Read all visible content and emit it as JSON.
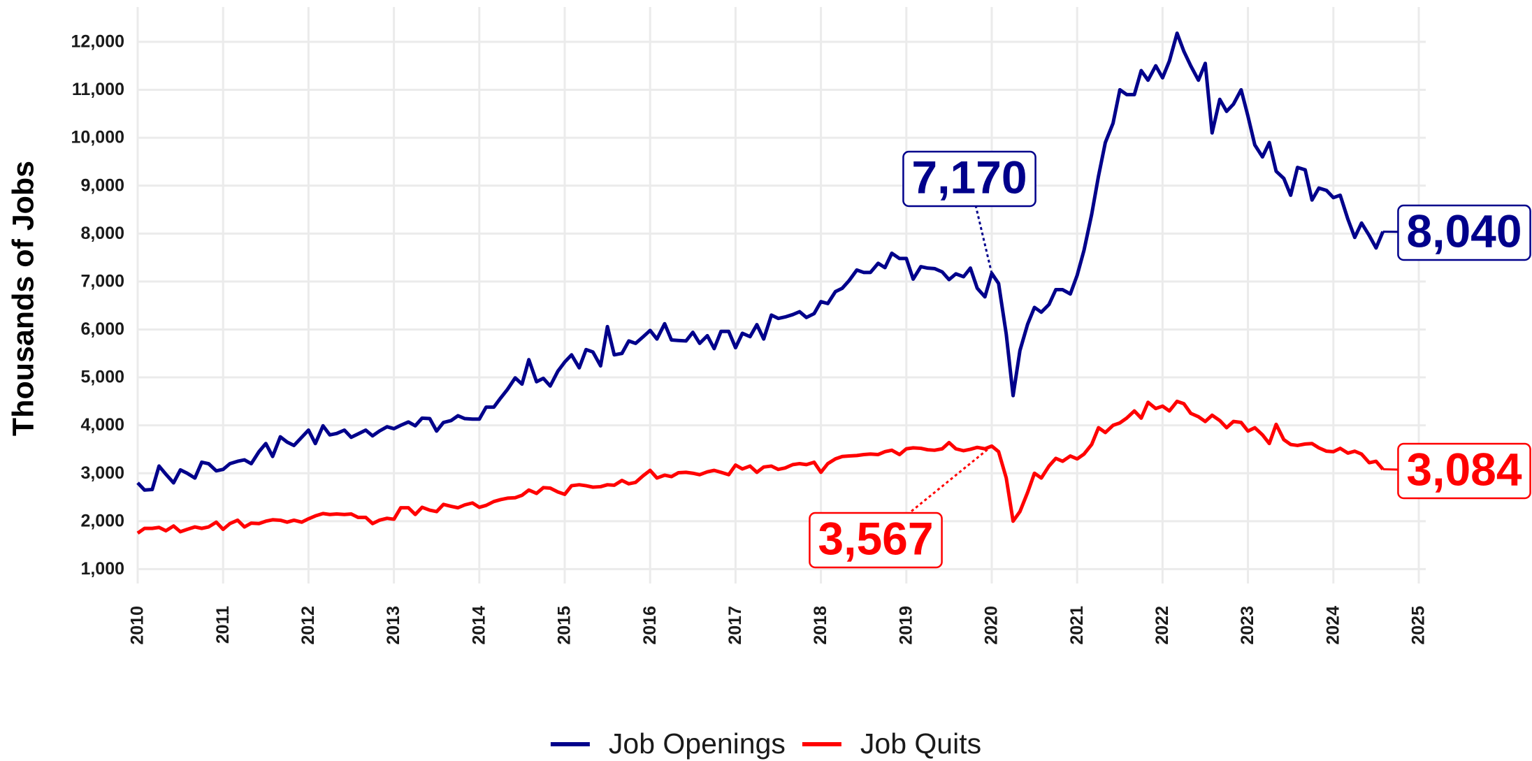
{
  "chart_data": {
    "type": "line",
    "ylabel": "Thousands of Jobs",
    "xlim": [
      2010,
      2025
    ],
    "xticks": [
      2010,
      2011,
      2012,
      2013,
      2014,
      2015,
      2016,
      2017,
      2018,
      2019,
      2020,
      2021,
      2022,
      2023,
      2024,
      2025
    ],
    "ylim": [
      700,
      12800
    ],
    "yticks": [
      {
        "value": 1000,
        "label": "1,000"
      },
      {
        "value": 2000,
        "label": "2,000"
      },
      {
        "value": 3000,
        "label": "3,000"
      },
      {
        "value": 4000,
        "label": "4,000"
      },
      {
        "value": 5000,
        "label": "5,000"
      },
      {
        "value": 6000,
        "label": "6,000"
      },
      {
        "value": 7000,
        "label": "7,000"
      },
      {
        "value": 8000,
        "label": "8,000"
      },
      {
        "value": 9000,
        "label": "9,000"
      },
      {
        "value": 10000,
        "label": "10,000"
      },
      {
        "value": 11000,
        "label": "11,000"
      },
      {
        "value": 12000,
        "label": "12,000"
      }
    ],
    "grid": true,
    "legend": "bottom",
    "x": [
      2010.0,
      2010.08,
      2010.17,
      2010.25,
      2010.33,
      2010.42,
      2010.5,
      2010.58,
      2010.67,
      2010.75,
      2010.83,
      2010.92,
      2011.0,
      2011.08,
      2011.17,
      2011.25,
      2011.33,
      2011.42,
      2011.5,
      2011.58,
      2011.67,
      2011.75,
      2011.83,
      2011.92,
      2012.0,
      2012.08,
      2012.17,
      2012.25,
      2012.33,
      2012.42,
      2012.5,
      2012.58,
      2012.67,
      2012.75,
      2012.83,
      2012.92,
      2013.0,
      2013.08,
      2013.17,
      2013.25,
      2013.33,
      2013.42,
      2013.5,
      2013.58,
      2013.67,
      2013.75,
      2013.83,
      2013.92,
      2014.0,
      2014.08,
      2014.17,
      2014.25,
      2014.33,
      2014.42,
      2014.5,
      2014.58,
      2014.67,
      2014.75,
      2014.83,
      2014.92,
      2015.0,
      2015.08,
      2015.17,
      2015.25,
      2015.33,
      2015.42,
      2015.5,
      2015.58,
      2015.67,
      2015.75,
      2015.83,
      2015.92,
      2016.0,
      2016.08,
      2016.17,
      2016.25,
      2016.33,
      2016.42,
      2016.5,
      2016.58,
      2016.67,
      2016.75,
      2016.83,
      2016.92,
      2017.0,
      2017.08,
      2017.17,
      2017.25,
      2017.33,
      2017.42,
      2017.5,
      2017.58,
      2017.67,
      2017.75,
      2017.83,
      2017.92,
      2018.0,
      2018.08,
      2018.17,
      2018.25,
      2018.33,
      2018.42,
      2018.5,
      2018.58,
      2018.67,
      2018.75,
      2018.83,
      2018.92,
      2019.0,
      2019.08,
      2019.17,
      2019.25,
      2019.33,
      2019.42,
      2019.5,
      2019.58,
      2019.67,
      2019.75,
      2019.83,
      2019.92,
      2020.0,
      2020.08,
      2020.17,
      2020.25,
      2020.33,
      2020.42,
      2020.5,
      2020.58,
      2020.67,
      2020.75,
      2020.83,
      2020.92,
      2021.0,
      2021.08,
      2021.17,
      2021.25,
      2021.33,
      2021.42,
      2021.5,
      2021.58,
      2021.67,
      2021.75,
      2021.83,
      2021.92,
      2022.0,
      2022.08,
      2022.17,
      2022.25,
      2022.33,
      2022.42,
      2022.5,
      2022.58,
      2022.67,
      2022.75,
      2022.83,
      2022.92,
      2023.0,
      2023.08,
      2023.17,
      2023.25,
      2023.33,
      2023.42,
      2023.5,
      2023.58,
      2023.67,
      2023.75,
      2023.83,
      2023.92,
      2024.0,
      2024.08,
      2024.17,
      2024.25,
      2024.33,
      2024.42,
      2024.5,
      2024.58
    ],
    "series": [
      {
        "name": "Job Openings",
        "color": "#00008b",
        "values": [
          2800,
          2650,
          2660,
          3150,
          2980,
          2800,
          3070,
          3000,
          2900,
          3230,
          3200,
          3050,
          3080,
          3200,
          3250,
          3280,
          3200,
          3450,
          3620,
          3350,
          3760,
          3650,
          3580,
          3750,
          3900,
          3620,
          3990,
          3800,
          3830,
          3900,
          3750,
          3820,
          3900,
          3780,
          3880,
          3970,
          3930,
          4000,
          4070,
          3990,
          4150,
          4140,
          3880,
          4060,
          4100,
          4200,
          4140,
          4130,
          4130,
          4380,
          4380,
          4570,
          4750,
          4990,
          4860,
          5370,
          4910,
          4980,
          4820,
          5130,
          5320,
          5470,
          5200,
          5580,
          5530,
          5240,
          6060,
          5470,
          5500,
          5760,
          5710,
          5850,
          5980,
          5800,
          6120,
          5780,
          5770,
          5760,
          5940,
          5710,
          5870,
          5600,
          5960,
          5960,
          5620,
          5920,
          5850,
          6100,
          5800,
          6300,
          6230,
          6260,
          6310,
          6370,
          6250,
          6330,
          6580,
          6540,
          6790,
          6860,
          7020,
          7240,
          7190,
          7190,
          7380,
          7290,
          7590,
          7480,
          7480,
          7050,
          7310,
          7280,
          7270,
          7200,
          7040,
          7160,
          7100,
          7280,
          6860,
          6680,
          7170,
          6960,
          5900,
          4620,
          5560,
          6110,
          6460,
          6360,
          6520,
          6830,
          6830,
          6740,
          7130,
          7650,
          8400,
          9200,
          9900,
          10300,
          11000,
          10900,
          10900,
          11400,
          11200,
          11500,
          11250,
          11600,
          12180,
          11800,
          11500,
          11200,
          11550,
          10100,
          10800,
          10550,
          10700,
          11000,
          10450,
          9850,
          9600,
          9900,
          9300,
          9150,
          8800,
          9380,
          9330,
          8700,
          8950,
          8900,
          8750,
          8800,
          8300,
          7920,
          8220,
          7960,
          7700,
          8040
        ]
      },
      {
        "name": "Job Quits",
        "color": "#ff0000",
        "values": [
          1750,
          1850,
          1850,
          1870,
          1800,
          1900,
          1780,
          1830,
          1880,
          1850,
          1880,
          1980,
          1830,
          1950,
          2020,
          1880,
          1960,
          1950,
          2000,
          2030,
          2020,
          1980,
          2020,
          1980,
          2050,
          2110,
          2160,
          2140,
          2150,
          2140,
          2150,
          2080,
          2080,
          1950,
          2020,
          2060,
          2040,
          2280,
          2280,
          2140,
          2290,
          2230,
          2200,
          2350,
          2310,
          2280,
          2340,
          2380,
          2290,
          2330,
          2410,
          2450,
          2480,
          2490,
          2540,
          2650,
          2580,
          2700,
          2690,
          2610,
          2560,
          2740,
          2760,
          2740,
          2710,
          2720,
          2760,
          2750,
          2850,
          2780,
          2810,
          2950,
          3060,
          2900,
          2960,
          2930,
          3010,
          3020,
          3000,
          2970,
          3030,
          3060,
          3020,
          2970,
          3170,
          3090,
          3150,
          3020,
          3130,
          3150,
          3080,
          3110,
          3180,
          3200,
          3180,
          3230,
          3020,
          3200,
          3300,
          3350,
          3360,
          3370,
          3390,
          3400,
          3390,
          3450,
          3480,
          3390,
          3510,
          3530,
          3520,
          3490,
          3480,
          3510,
          3640,
          3510,
          3470,
          3500,
          3540,
          3510,
          3567,
          3450,
          2900,
          2000,
          2200,
          2600,
          3000,
          2900,
          3150,
          3310,
          3250,
          3360,
          3300,
          3400,
          3600,
          3950,
          3850,
          4000,
          4050,
          4150,
          4300,
          4150,
          4480,
          4350,
          4400,
          4300,
          4500,
          4450,
          4250,
          4180,
          4080,
          4210,
          4100,
          3950,
          4080,
          4060,
          3880,
          3950,
          3800,
          3620,
          4020,
          3700,
          3600,
          3580,
          3610,
          3620,
          3530,
          3460,
          3450,
          3520,
          3420,
          3460,
          3400,
          3220,
          3250,
          3084
        ]
      }
    ],
    "annotations": [
      {
        "label": "7,170",
        "value": 7170,
        "x": 2020.0,
        "series": 0
      },
      {
        "label": "3,567",
        "value": 3567,
        "x": 2020.0,
        "series": 1
      },
      {
        "label": "8,040",
        "value": 8040,
        "x": 2024.58,
        "series": 0
      },
      {
        "label": "3,084",
        "value": 3084,
        "x": 2024.58,
        "series": 1
      }
    ]
  }
}
